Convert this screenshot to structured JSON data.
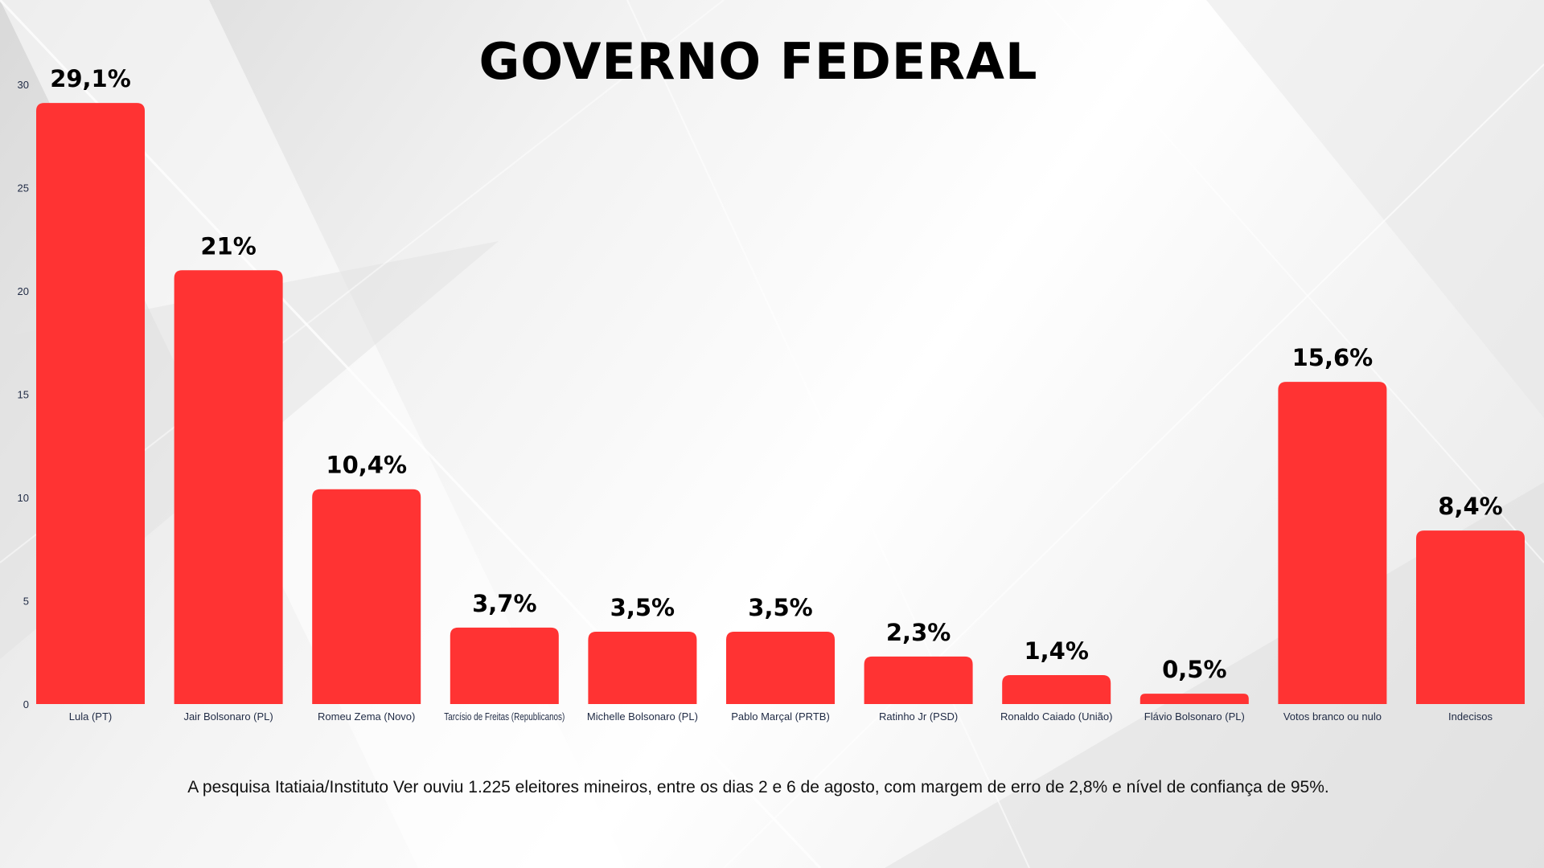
{
  "title": "GOVERNO FEDERAL",
  "footnote": "A pesquisa Itatiaia/Instituto Ver ouviu 1.225 eleitores mineiros, entre os dias 2 e 6 de agosto, com margem de erro de 2,8% e nível de confiança de 95%.",
  "colors": {
    "bar": "#ff3333",
    "text": "#000000",
    "axis_text": "#1f2a44"
  },
  "chart_data": {
    "type": "bar",
    "title": "GOVERNO FEDERAL",
    "xlabel": "",
    "ylabel": "",
    "ylim": [
      0,
      30
    ],
    "yticks": [
      "0",
      "5",
      "10",
      "15",
      "20",
      "25",
      "30"
    ],
    "grid": false,
    "categories": [
      "Lula (PT)",
      "Jair Bolsonaro (PL)",
      "Romeu Zema (Novo)",
      "Tarcísio de Freitas (Republicanos)",
      "Michelle Bolsonaro (PL)",
      "Pablo Marçal (PRTB)",
      "Ratinho Jr (PSD)",
      "Ronaldo Caiado (União)",
      "Flávio Bolsonaro (PL)",
      "Votos branco ou nulo",
      "Indecisos"
    ],
    "values": [
      29.1,
      21,
      10.4,
      3.7,
      3.5,
      3.5,
      2.3,
      1.4,
      0.5,
      15.6,
      8.4
    ],
    "data_labels": [
      "29,1%",
      "21%",
      "10,4%",
      "3,7%",
      "3,5%",
      "3,5%",
      "2,3%",
      "1,4%",
      "0,5%",
      "15,6%",
      "8,4%"
    ]
  }
}
